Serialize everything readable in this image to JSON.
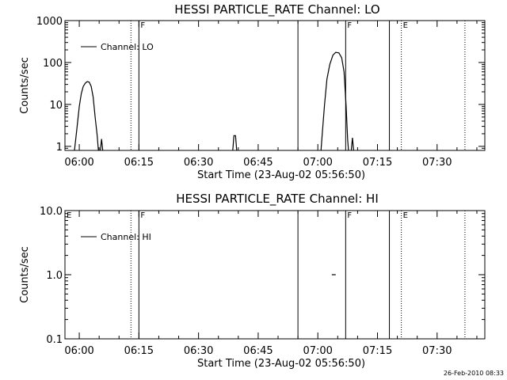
{
  "footer_timestamp": "26-Feb-2010 08:33",
  "chart_data": [
    {
      "type": "line",
      "title": "HESSI PARTICLE_RATE Channel: LO",
      "xlabel": "Start Time (23-Aug-02 05:56:50)",
      "ylabel": "Counts/sec",
      "yscale": "log",
      "ylim": [
        0.8,
        1000
      ],
      "xlim_minutes": [
        -2.5,
        39.5
      ],
      "x_ticks": [
        {
          "label": "06:00",
          "min": 0
        },
        {
          "label": "06:15",
          "min": 15
        },
        {
          "label": "06:30",
          "min": 30
        },
        {
          "label": "06:45",
          "min": 45
        },
        {
          "label": "07:00",
          "min": 60
        },
        {
          "label": "07:15",
          "min": 75
        },
        {
          "label": "07:30",
          "min": 90
        }
      ],
      "y_ticks": [
        {
          "label": "1",
          "v": 1
        },
        {
          "label": "10",
          "v": 10
        },
        {
          "label": "100",
          "v": 100
        },
        {
          "label": "1000",
          "v": 1000
        }
      ],
      "legend": {
        "label": "Channel: LO",
        "position": "top-left"
      },
      "markers": [
        {
          "min": 13,
          "style": "dotted",
          "label": ""
        },
        {
          "min": 15,
          "style": "solid",
          "label": "F"
        },
        {
          "min": 55,
          "style": "solid",
          "label": ""
        },
        {
          "min": 67,
          "style": "solid",
          "label": "F"
        },
        {
          "min": 78,
          "style": "solid",
          "label": ""
        },
        {
          "min": 81,
          "style": "dotted",
          "label": "E"
        },
        {
          "min": 97,
          "style": "dotted",
          "label": ""
        }
      ],
      "series": [
        {
          "segments": [
            [
              [
                -1.2,
                0.8
              ],
              [
                -0.8,
                1.8
              ],
              [
                -0.4,
                4
              ],
              [
                0,
                9
              ],
              [
                0.5,
                18
              ],
              [
                1,
                27
              ],
              [
                1.5,
                32
              ],
              [
                2,
                35
              ],
              [
                2.5,
                34
              ],
              [
                3,
                27
              ],
              [
                3.5,
                15
              ],
              [
                4,
                5
              ],
              [
                4.5,
                1.8
              ],
              [
                4.8,
                0.8
              ]
            ],
            [
              [
                5.3,
                0.8
              ],
              [
                5.6,
                1.5
              ],
              [
                5.9,
                0.8
              ]
            ],
            [
              [
                38.6,
                0.8
              ],
              [
                38.9,
                1.8
              ],
              [
                39.3,
                1.8
              ],
              [
                39.6,
                0.8
              ]
            ],
            [
              [
                60.8,
                0.8
              ],
              [
                61.2,
                2.5
              ],
              [
                61.7,
                10
              ],
              [
                62.3,
                40
              ],
              [
                63,
                90
              ],
              [
                63.8,
                150
              ],
              [
                64.5,
                175
              ],
              [
                65.3,
                170
              ],
              [
                66,
                130
              ],
              [
                66.6,
                60
              ],
              [
                67.1,
                10
              ],
              [
                67.5,
                1.5
              ],
              [
                67.7,
                0.8
              ]
            ],
            [
              [
                68.4,
                0.8
              ],
              [
                68.7,
                1.6
              ],
              [
                69,
                0.8
              ]
            ]
          ]
        }
      ]
    },
    {
      "type": "line",
      "title": "HESSI PARTICLE_RATE Channel: HI",
      "xlabel": "Start Time (23-Aug-02 05:56:50)",
      "ylabel": "Counts/sec",
      "yscale": "log",
      "ylim": [
        0.1,
        10
      ],
      "x_ticks": [
        {
          "label": "06:00",
          "min": 0
        },
        {
          "label": "06:15",
          "min": 15
        },
        {
          "label": "06:30",
          "min": 30
        },
        {
          "label": "06:45",
          "min": 45
        },
        {
          "label": "07:00",
          "min": 60
        },
        {
          "label": "07:15",
          "min": 75
        },
        {
          "label": "07:30",
          "min": 90
        }
      ],
      "y_ticks": [
        {
          "label": "0.1",
          "v": 0.1
        },
        {
          "label": "1.0",
          "v": 1
        },
        {
          "label": "10.0",
          "v": 10
        }
      ],
      "legend": {
        "label": "Channel: HI",
        "position": "top-left"
      },
      "markers": [
        {
          "min": -3.5,
          "style": "none",
          "label": "E"
        },
        {
          "min": 13,
          "style": "dotted",
          "label": ""
        },
        {
          "min": 15,
          "style": "solid",
          "label": "F"
        },
        {
          "min": 55,
          "style": "solid",
          "label": ""
        },
        {
          "min": 67,
          "style": "solid",
          "label": "F"
        },
        {
          "min": 78,
          "style": "solid",
          "label": ""
        },
        {
          "min": 81,
          "style": "dotted",
          "label": "E"
        },
        {
          "min": 97,
          "style": "dotted",
          "label": ""
        }
      ],
      "series": [
        {
          "segments": [
            [
              [
                63.5,
                1.0
              ],
              [
                64.5,
                1.0
              ]
            ]
          ]
        }
      ]
    }
  ]
}
